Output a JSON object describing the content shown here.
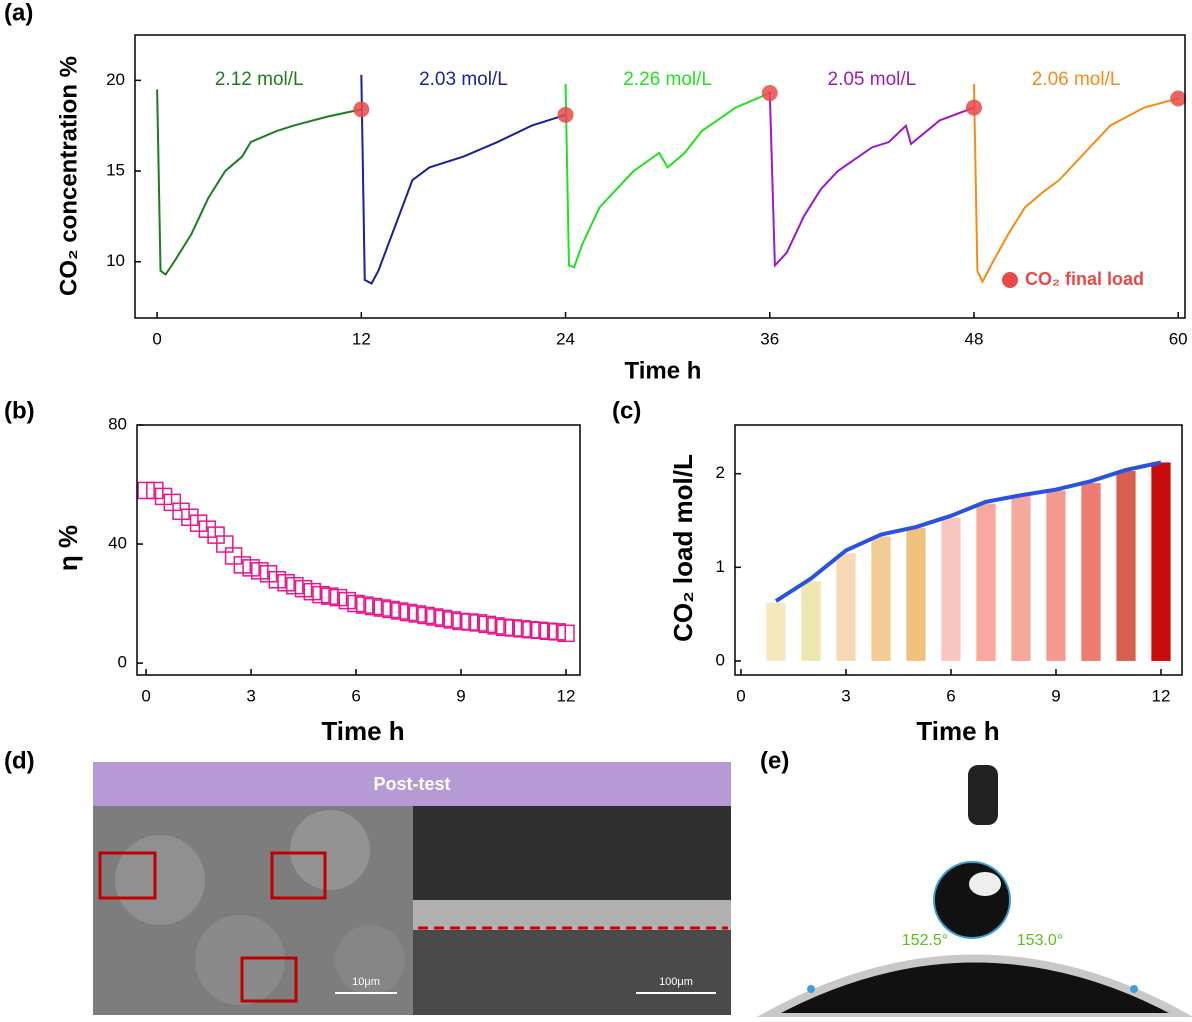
{
  "chart_data": [
    {
      "type": "line",
      "xlabel": "Time h",
      "ylabel": "CO₂ concentration %",
      "xlim": [
        -1.3,
        60.4
      ],
      "ylim": [
        6.9,
        22.5
      ],
      "xticks": [
        0,
        12,
        24,
        36,
        48,
        60
      ],
      "yticks": [
        10,
        15,
        20
      ],
      "series": [
        {
          "name": "2.12 mol/L",
          "color": "#1e7d1e",
          "x": [
            0,
            0.2,
            0.5,
            1,
            2,
            3,
            4,
            5,
            5.5,
            6,
            7,
            8,
            10,
            12
          ],
          "values": [
            19.5,
            9.5,
            9.3,
            10,
            11.5,
            13.5,
            15,
            15.8,
            16.6,
            16.8,
            17.2,
            17.5,
            18,
            18.4
          ]
        },
        {
          "name": "2.03 mol/L",
          "color": "#1a1f9c",
          "x": [
            12,
            12.2,
            12.6,
            13,
            14,
            15,
            16,
            18,
            20,
            22,
            24
          ],
          "values": [
            20.3,
            9,
            8.8,
            9.5,
            12,
            14.5,
            15.2,
            15.8,
            16.6,
            17.5,
            18.1
          ]
        },
        {
          "name": "2.26 mol/L",
          "color": "#22e022",
          "x": [
            24,
            24.2,
            24.5,
            25,
            26,
            28,
            29.5,
            30,
            31,
            32,
            34,
            36
          ],
          "values": [
            19.8,
            9.8,
            9.7,
            11,
            13,
            15,
            16,
            15.2,
            16,
            17.2,
            18.5,
            19.3
          ]
        },
        {
          "name": "2.05 mol/L",
          "color": "#9b19c9",
          "x": [
            36,
            36.3,
            37,
            38,
            39,
            40,
            42,
            43,
            44,
            44.3,
            46,
            48
          ],
          "values": [
            19.4,
            9.8,
            10.5,
            12.5,
            14,
            15,
            16.3,
            16.6,
            17.5,
            16.5,
            17.8,
            18.5
          ]
        },
        {
          "name": "2.06 mol/L",
          "color": "#f78b14",
          "x": [
            48,
            48.2,
            48.5,
            49,
            50,
            51,
            52,
            53,
            54,
            55,
            56,
            58,
            60
          ],
          "values": [
            19.8,
            9.5,
            8.9,
            9.8,
            11.5,
            13,
            13.8,
            14.5,
            15.5,
            16.5,
            17.5,
            18.5,
            19
          ]
        }
      ],
      "markers": {
        "name": "CO₂ final load",
        "color": "#e84a4a",
        "x": [
          12,
          24,
          36,
          48,
          60
        ],
        "values": [
          18.4,
          18.1,
          19.3,
          18.5,
          19
        ]
      }
    },
    {
      "type": "scatter",
      "xlabel": "Time h",
      "ylabel": "η %",
      "color": "#e8168c",
      "xlim": [
        -0.26,
        12.4
      ],
      "ylim": [
        -4,
        80
      ],
      "xticks": [
        0,
        3,
        6,
        9,
        12
      ],
      "yticks": [
        0,
        40,
        80
      ],
      "x": [
        0,
        0.25,
        0.5,
        0.75,
        1,
        1.25,
        1.5,
        1.75,
        2,
        2.25,
        2.5,
        2.75,
        3,
        3.25,
        3.5,
        3.75,
        4,
        4.25,
        4.5,
        4.75,
        5,
        5.25,
        5.5,
        5.75,
        6,
        6.25,
        6.5,
        6.75,
        7,
        7.25,
        7.5,
        7.75,
        8,
        8.25,
        8.5,
        8.75,
        9,
        9.25,
        9.5,
        9.75,
        10,
        10.25,
        10.5,
        10.75,
        11,
        11.25,
        11.5,
        11.75,
        12
      ],
      "values": [
        58,
        58,
        56,
        54,
        51,
        49,
        47,
        45,
        43,
        40,
        36,
        33,
        32,
        31,
        30,
        28,
        27,
        26,
        25,
        24,
        23,
        22.5,
        22,
        21,
        20,
        19.5,
        19,
        18.5,
        18,
        17.5,
        17,
        16.5,
        16,
        15.5,
        15,
        14.5,
        14,
        13.8,
        13.5,
        13,
        12.5,
        12,
        11.8,
        11.5,
        11.2,
        11,
        10.7,
        10.5,
        10
      ]
    },
    {
      "type": "bar",
      "xlabel": "Time h",
      "ylabel": "CO₂ load mol/L",
      "xlim": [
        -0.17,
        12.6
      ],
      "ylim": [
        -0.15,
        2.52
      ],
      "xticks": [
        0,
        3,
        6,
        9,
        12
      ],
      "yticks": [
        0,
        1,
        2
      ],
      "x": [
        1,
        2,
        3,
        4,
        5,
        6,
        7,
        8,
        9,
        10,
        11,
        12
      ],
      "series": [
        {
          "type": "bar",
          "colors": [
            "#f5e9c0",
            "#efe6b0",
            "#f7d9b5",
            "#f3cc94",
            "#efc27d",
            "#f9c6c2",
            "#f7a99e",
            "#f5a89c",
            "#f29a92",
            "#ee7c72",
            "#d8604e",
            "#c80c0c"
          ],
          "values": [
            0.62,
            0.85,
            1.15,
            1.33,
            1.42,
            1.53,
            1.68,
            1.76,
            1.82,
            1.9,
            2.03,
            2.12
          ]
        },
        {
          "type": "line",
          "color": "#2a52e0",
          "values": [
            0.64,
            0.88,
            1.18,
            1.35,
            1.43,
            1.55,
            1.7,
            1.77,
            1.83,
            1.92,
            2.04,
            2.12
          ]
        }
      ]
    }
  ],
  "figure": {
    "panel_labels": [
      "(a)",
      "(b)",
      "(c)",
      "(d)",
      "(e)"
    ],
    "d": {
      "banner": "Post-test",
      "scale_left": "10μm",
      "scale_right": "100μm"
    },
    "e": {
      "angle_left": "152.5°",
      "angle_right": "153.0°"
    }
  }
}
